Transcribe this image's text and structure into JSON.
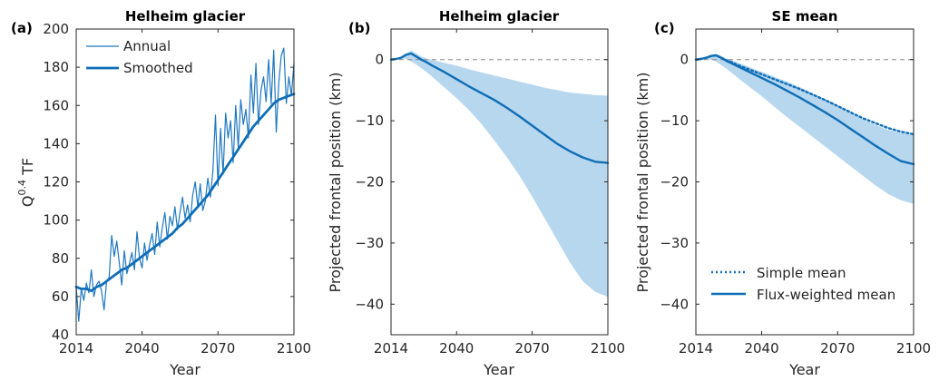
{
  "chart_data": [
    {
      "panel_label": "(a)",
      "type": "line",
      "title": "Helheim glacier",
      "xlabel": "Year",
      "ylabel": "Q^0.4 TF",
      "ylabel_base": "Q",
      "ylabel_sup": "0.4",
      "ylabel_suffix": " TF",
      "xlim": [
        2014,
        2100
      ],
      "ylim": [
        40,
        200
      ],
      "xticks": [
        "2014",
        "2040",
        "2070",
        "2100"
      ],
      "xtick_values": [
        2014,
        2040,
        2070,
        2100
      ],
      "yticks": [
        "40",
        "60",
        "80",
        "100",
        "120",
        "140",
        "160",
        "180",
        "200"
      ],
      "ytick_values": [
        40,
        60,
        80,
        100,
        120,
        140,
        160,
        180,
        200
      ],
      "legend_position": "top-left",
      "legend": [
        "Annual",
        "Smoothed"
      ],
      "series": [
        {
          "name": "Annual",
          "x": [
            2014,
            2015,
            2016,
            2017,
            2018,
            2019,
            2020,
            2021,
            2022,
            2023,
            2024,
            2025,
            2026,
            2027,
            2028,
            2029,
            2030,
            2031,
            2032,
            2033,
            2034,
            2035,
            2036,
            2037,
            2038,
            2039,
            2040,
            2041,
            2042,
            2043,
            2044,
            2045,
            2046,
            2047,
            2048,
            2049,
            2050,
            2051,
            2052,
            2053,
            2054,
            2055,
            2056,
            2057,
            2058,
            2059,
            2060,
            2061,
            2062,
            2063,
            2064,
            2065,
            2066,
            2067,
            2068,
            2069,
            2070,
            2071,
            2072,
            2073,
            2074,
            2075,
            2076,
            2077,
            2078,
            2079,
            2080,
            2081,
            2082,
            2083,
            2084,
            2085,
            2086,
            2087,
            2088,
            2089,
            2090,
            2091,
            2092,
            2093,
            2094,
            2095,
            2096,
            2097,
            2098,
            2099,
            2100
          ],
          "y": [
            65,
            47,
            64,
            58,
            67,
            62,
            74,
            60,
            66,
            68,
            63,
            53,
            68,
            70,
            92,
            81,
            89,
            78,
            66,
            84,
            72,
            77,
            83,
            74,
            94,
            80,
            75,
            88,
            79,
            87,
            93,
            82,
            99,
            86,
            96,
            104,
            90,
            102,
            97,
            107,
            95,
            104,
            112,
            101,
            108,
            99,
            113,
            120,
            107,
            119,
            105,
            110,
            122,
            112,
            126,
            155,
            118,
            148,
            124,
            156,
            143,
            152,
            130,
            160,
            138,
            163,
            150,
            158,
            143,
            176,
            156,
            182,
            150,
            168,
            175,
            162,
            184,
            161,
            189,
            146,
            172,
            186,
            190,
            161,
            175,
            165,
            182
          ]
        },
        {
          "name": "Smoothed",
          "x": [
            2014,
            2016,
            2018,
            2020,
            2022,
            2024,
            2026,
            2028,
            2030,
            2032,
            2034,
            2036,
            2038,
            2040,
            2042,
            2044,
            2046,
            2048,
            2050,
            2052,
            2054,
            2056,
            2058,
            2060,
            2062,
            2064,
            2066,
            2068,
            2070,
            2072,
            2074,
            2076,
            2078,
            2080,
            2082,
            2084,
            2086,
            2088,
            2090,
            2092,
            2094,
            2096,
            2098,
            2100
          ],
          "y": [
            65,
            64,
            64,
            63,
            65,
            66,
            68,
            70,
            72,
            74,
            75,
            77,
            79,
            81,
            83,
            85,
            87,
            89,
            91,
            93,
            96,
            98,
            101,
            104,
            107,
            110,
            113,
            117,
            121,
            125,
            129,
            133,
            137,
            141,
            145,
            149,
            152,
            155,
            158,
            161,
            163,
            164,
            165,
            166
          ]
        }
      ]
    },
    {
      "panel_label": "(b)",
      "type": "area",
      "title": "Helheim glacier",
      "xlabel": "Year",
      "ylabel": "Projected frontal position (km)",
      "xlim": [
        2014,
        2100
      ],
      "ylim": [
        -45,
        5
      ],
      "xticks": [
        "2014",
        "2040",
        "2070",
        "2100"
      ],
      "xtick_values": [
        2014,
        2040,
        2070,
        2100
      ],
      "yticks": [
        "0",
        "-10",
        "-20",
        "-30",
        "-40"
      ],
      "ytick_values": [
        0,
        -10,
        -20,
        -30,
        -40
      ],
      "reference_line_y": 0,
      "band": {
        "x": [
          2014,
          2018,
          2020,
          2022,
          2024,
          2026,
          2028,
          2030,
          2035,
          2040,
          2045,
          2050,
          2055,
          2060,
          2065,
          2070,
          2075,
          2080,
          2085,
          2090,
          2095,
          2100
        ],
        "upper": [
          0,
          0.4,
          1.0,
          1.5,
          1.0,
          0.5,
          0.2,
          0,
          -0.5,
          -1.0,
          -1.6,
          -2.1,
          -2.6,
          -3.1,
          -3.6,
          -4.1,
          -4.6,
          -5.0,
          -5.4,
          -5.6,
          -5.8,
          -5.9
        ],
        "lower": [
          0,
          0.2,
          0.1,
          -0.3,
          -0.8,
          -1.4,
          -2.0,
          -2.7,
          -4.5,
          -6.3,
          -8.3,
          -10.6,
          -13.2,
          -16.0,
          -19.0,
          -22.4,
          -26.0,
          -29.6,
          -33.2,
          -36.2,
          -38.0,
          -38.8
        ]
      },
      "series": [
        {
          "name": "",
          "x": [
            2014,
            2016,
            2018,
            2020,
            2022,
            2024,
            2026,
            2028,
            2030,
            2035,
            2040,
            2045,
            2050,
            2055,
            2060,
            2065,
            2070,
            2075,
            2080,
            2085,
            2090,
            2095,
            2100
          ],
          "y": [
            0,
            0.1,
            0.3,
            0.8,
            1.0,
            0.5,
            0,
            -0.4,
            -0.9,
            -2.0,
            -3.2,
            -4.4,
            -5.5,
            -6.6,
            -7.9,
            -9.3,
            -10.8,
            -12.3,
            -13.8,
            -15.0,
            -16.0,
            -16.7,
            -16.9
          ]
        }
      ]
    },
    {
      "panel_label": "(c)",
      "type": "area",
      "title": "SE mean",
      "xlabel": "Year",
      "ylabel": "Projected frontal position (km)",
      "xlim": [
        2014,
        2100
      ],
      "ylim": [
        -45,
        5
      ],
      "xticks": [
        "2014",
        "2040",
        "2070",
        "2100"
      ],
      "xtick_values": [
        2014,
        2040,
        2070,
        2100
      ],
      "yticks": [
        "0",
        "-10",
        "-20",
        "-30",
        "-40"
      ],
      "ytick_values": [
        0,
        -10,
        -20,
        -30,
        -40
      ],
      "reference_line_y": 0,
      "legend_position": "bottom-left",
      "legend": [
        "Simple mean",
        "Flux-weighted mean"
      ],
      "band": {
        "x": [
          2014,
          2018,
          2020,
          2022,
          2024,
          2026,
          2028,
          2030,
          2035,
          2040,
          2045,
          2050,
          2055,
          2060,
          2065,
          2070,
          2075,
          2080,
          2085,
          2090,
          2095,
          2100
        ],
        "upper": [
          0,
          0.3,
          0.6,
          0.9,
          0.6,
          0.2,
          -0.1,
          -0.4,
          -1.2,
          -2.0,
          -2.8,
          -3.6,
          -4.5,
          -5.5,
          -6.5,
          -7.6,
          -8.7,
          -9.8,
          -10.7,
          -11.5,
          -12.0,
          -12.3
        ],
        "lower": [
          0,
          0.1,
          0,
          -0.3,
          -0.9,
          -1.5,
          -2.1,
          -2.8,
          -4.4,
          -6.0,
          -7.7,
          -9.4,
          -11.0,
          -12.6,
          -14.2,
          -15.8,
          -17.4,
          -19.0,
          -20.6,
          -22.0,
          -23.0,
          -23.6
        ]
      },
      "series": [
        {
          "name": "Simple mean",
          "x": [
            2014,
            2016,
            2018,
            2020,
            2022,
            2024,
            2026,
            2028,
            2030,
            2035,
            2040,
            2045,
            2050,
            2055,
            2060,
            2065,
            2070,
            2075,
            2080,
            2085,
            2090,
            2095,
            2100
          ],
          "y": [
            0,
            0.1,
            0.3,
            0.6,
            0.7,
            0.3,
            -0.1,
            -0.4,
            -0.8,
            -1.6,
            -2.4,
            -3.2,
            -4.0,
            -4.8,
            -5.7,
            -6.6,
            -7.6,
            -8.6,
            -9.6,
            -10.4,
            -11.2,
            -11.8,
            -12.2
          ]
        },
        {
          "name": "Flux-weighted mean",
          "x": [
            2014,
            2016,
            2018,
            2020,
            2022,
            2024,
            2026,
            2028,
            2030,
            2035,
            2040,
            2045,
            2050,
            2055,
            2060,
            2065,
            2070,
            2075,
            2080,
            2085,
            2090,
            2095,
            2100
          ],
          "y": [
            0,
            0.1,
            0.3,
            0.6,
            0.7,
            0.3,
            -0.2,
            -0.6,
            -1.0,
            -2.0,
            -3.0,
            -4.0,
            -5.1,
            -6.2,
            -7.4,
            -8.6,
            -9.9,
            -11.3,
            -12.7,
            -14.1,
            -15.4,
            -16.6,
            -17.1
          ]
        }
      ]
    }
  ]
}
